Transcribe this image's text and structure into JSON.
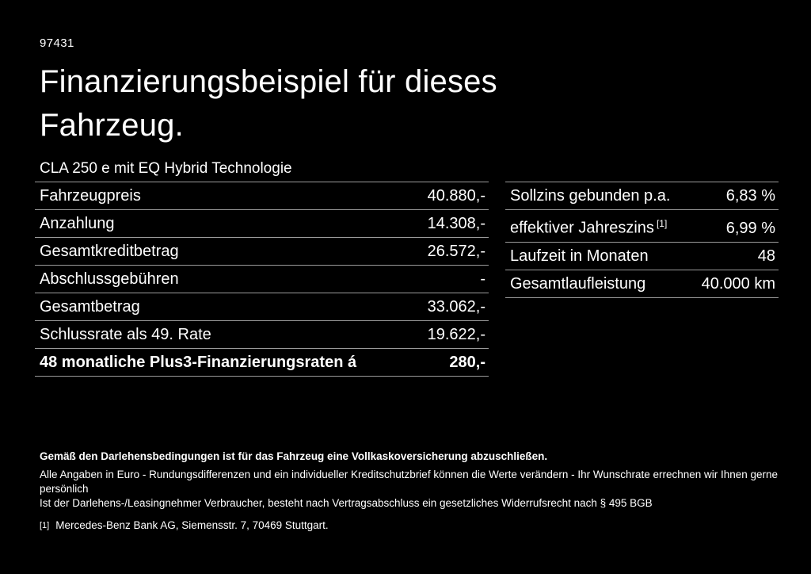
{
  "page": {
    "background": "#000000",
    "text_color": "#ffffff",
    "divider_color": "#9b9b9b",
    "doc_number": "97431",
    "title_line1": "Finanzierungsbeispiel für dieses",
    "title_line2": "Fahrzeug.",
    "subtitle": "CLA 250 e mit EQ Hybrid Technologie"
  },
  "finance_table": {
    "rows": [
      {
        "label": "Fahrzeugpreis",
        "value": "40.880,-"
      },
      {
        "label": "Anzahlung",
        "value": "14.308,-"
      },
      {
        "label": "Gesamtkreditbetrag",
        "value": "26.572,-"
      },
      {
        "label": "Abschlussgebühren",
        "value": "-"
      },
      {
        "label": "Gesamtbetrag",
        "value": "33.062,-"
      },
      {
        "label": "Schlussrate als 49. Rate",
        "value": "19.622,-"
      },
      {
        "label": "48 monatliche Plus3-Finanzierungsraten á",
        "value": "280,-",
        "bold": true
      }
    ]
  },
  "conditions_table": {
    "rows": [
      {
        "label": "Sollzins gebunden p.a.",
        "value": "6,83 %"
      },
      {
        "label": "effektiver Jahreszins",
        "sup": "[1]",
        "value": "6,99 %"
      },
      {
        "label": "Laufzeit in Monaten",
        "value": "48"
      },
      {
        "label": "Gesamtlaufleistung",
        "value": "40.000 km"
      }
    ]
  },
  "footer": {
    "insurance_note": "Gemäß den Darlehensbedingungen ist für das Fahrzeug eine Vollkaskoversicherung abzuschließen.",
    "disclaimer_line1": "Alle Angaben in Euro - Rundungsdifferenzen und ein individueller Kreditschutzbrief können die Werte verändern - Ihr Wunschrate errechnen wir Ihnen gerne persönlich",
    "disclaimer_line2": "Ist der Darlehens-/Leasingnehmer Verbraucher, besteht nach Vertragsabschluss ein gesetzliches Widerrufsrecht nach § 495 BGB",
    "footnote_marker": "[1]",
    "footnote_text": "Mercedes-Benz Bank AG, Siemensstr. 7, 70469 Stuttgart."
  }
}
